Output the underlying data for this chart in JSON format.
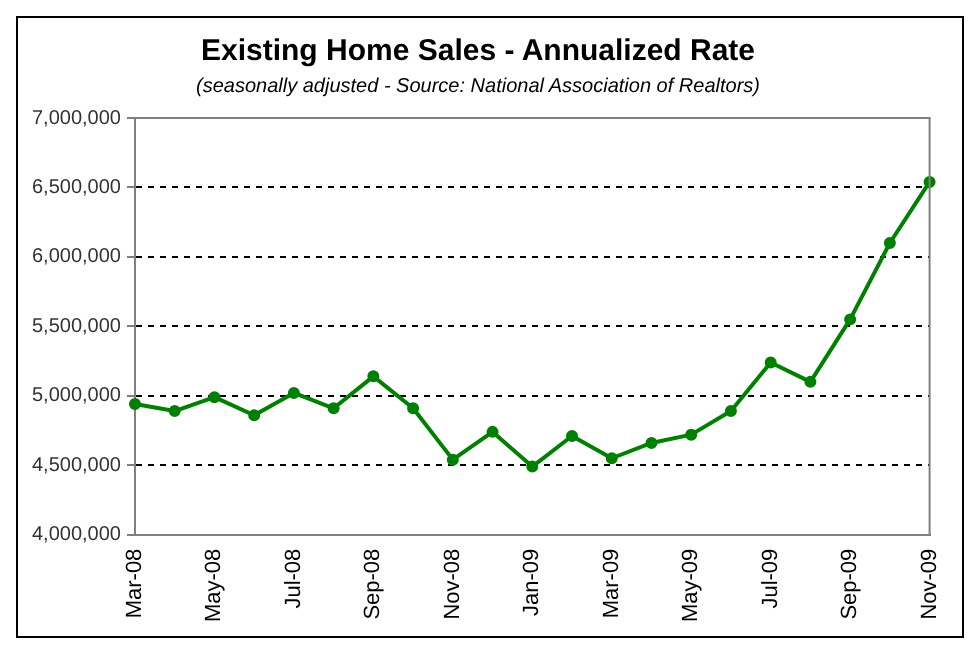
{
  "chart_data": {
    "type": "line",
    "title": "Existing Home Sales - Annualized Rate",
    "subtitle": "(seasonally adjusted - Source: National Association of Realtors)",
    "categories": [
      "Mar-08",
      null,
      "May-08",
      null,
      "Jul-08",
      null,
      "Sep-08",
      null,
      "Nov-08",
      null,
      "Jan-09",
      null,
      "Mar-09",
      null,
      "May-09",
      null,
      "Jul-09",
      null,
      "Sep-09",
      null,
      "Nov-09"
    ],
    "series": [
      {
        "color": "#008000",
        "values": [
          4940000,
          4890000,
          4990000,
          4860000,
          5020000,
          4910000,
          5140000,
          4910000,
          4540000,
          4740000,
          4490000,
          4710000,
          4550000,
          4660000,
          4720000,
          4890000,
          5240000,
          5100000,
          5550000,
          6100000,
          6540000
        ]
      }
    ],
    "ylim": [
      4000000,
      7000000
    ],
    "yticks": [
      {
        "value": 4000000,
        "label": "4,000,000"
      },
      {
        "value": 4500000,
        "label": "4,500,000"
      },
      {
        "value": 5000000,
        "label": "5,000,000"
      },
      {
        "value": 5500000,
        "label": "5,500,000"
      },
      {
        "value": 6000000,
        "label": "6,000,000"
      },
      {
        "value": 6500000,
        "label": "6,500,000"
      },
      {
        "value": 7000000,
        "label": "7,000,000"
      }
    ],
    "grid": "y",
    "legend": false,
    "marker": "circle",
    "line_style": "solid"
  }
}
